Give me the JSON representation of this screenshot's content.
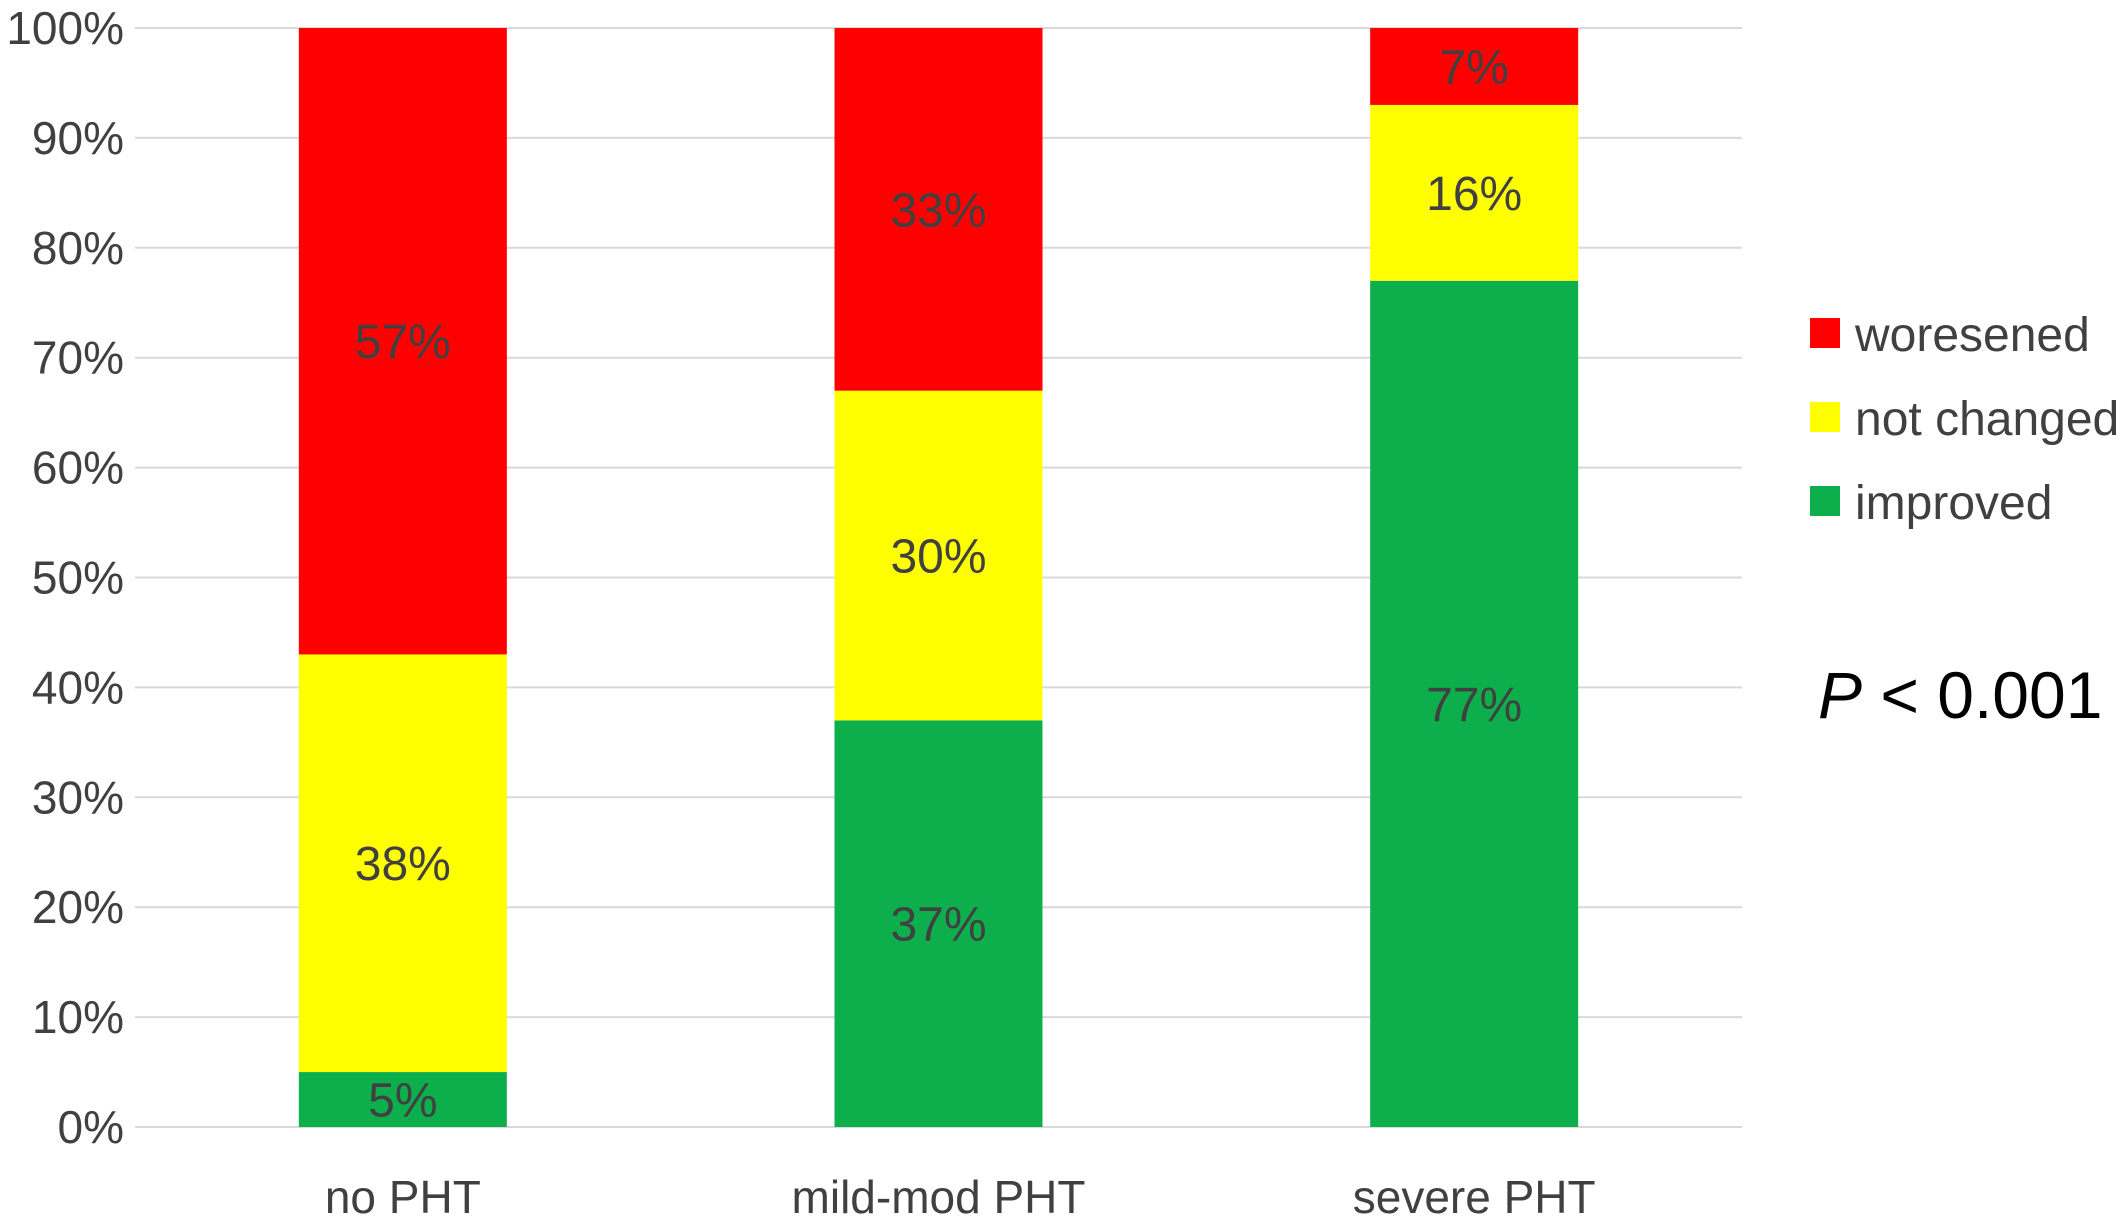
{
  "chart_data": {
    "type": "bar",
    "stacked": true,
    "percent": true,
    "categories": [
      "no PHT",
      "mild-mod PHT",
      "severe PHT"
    ],
    "series": [
      {
        "name": "improved",
        "values": [
          5,
          37,
          77
        ],
        "labels": [
          "5%",
          "37%",
          "77%"
        ],
        "color": "#0DAF4D"
      },
      {
        "name": "not changed",
        "values": [
          38,
          30,
          16
        ],
        "labels": [
          "38%",
          "30%",
          "16%"
        ],
        "color": "#FFFF00"
      },
      {
        "name": "woresened",
        "values": [
          57,
          33,
          7
        ],
        "labels": [
          "57%",
          "33%",
          "7%"
        ],
        "color": "#FF0000"
      }
    ],
    "legend_order": [
      "woresened",
      "not changed",
      "improved"
    ],
    "ylim": [
      0,
      100
    ],
    "yticks": [
      "0%",
      "10%",
      "20%",
      "30%",
      "40%",
      "50%",
      "60%",
      "70%",
      "80%",
      "90%",
      "100%"
    ],
    "grid": true,
    "legend_position": "right",
    "title": "",
    "xlabel": "",
    "ylabel": "",
    "annotation": {
      "italic": "P",
      "rest": " < 0.001"
    }
  }
}
